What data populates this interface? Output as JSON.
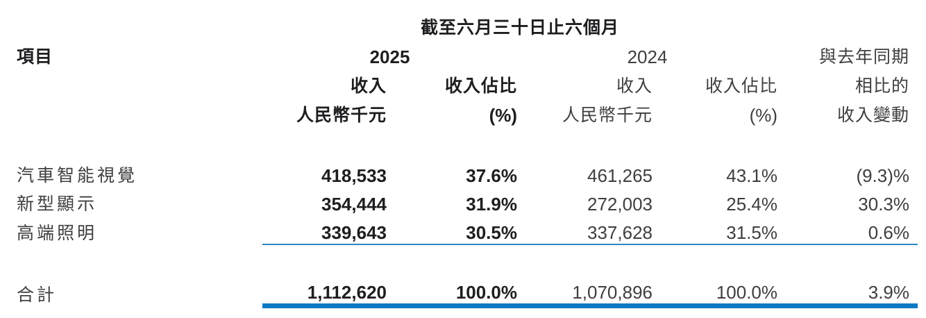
{
  "table": {
    "period_title": "截至六月三十日止六個月",
    "item_header": "項目",
    "year_2025": "2025",
    "year_2024": "2024",
    "columns_2025": {
      "revenue": "收入",
      "revenue_unit": "人民幣千元",
      "share": "收入佔比",
      "share_unit": "(%)"
    },
    "columns_2024": {
      "revenue": "收入",
      "revenue_unit": "人民幣千元",
      "share": "收入佔比",
      "share_unit": "(%)"
    },
    "change_header_lines": [
      "與去年同期",
      "相比的",
      "收入變動"
    ],
    "rows": [
      {
        "label": "汽車智能視覺",
        "rev_2025": "418,533",
        "share_2025": "37.6%",
        "rev_2024": "461,265",
        "share_2024": "43.1%",
        "change": "(9.3)%"
      },
      {
        "label": "新型顯示",
        "rev_2025": "354,444",
        "share_2025": "31.9%",
        "rev_2024": "272,003",
        "share_2024": "25.4%",
        "change": "30.3%"
      },
      {
        "label": "高端照明",
        "rev_2025": "339,643",
        "share_2025": "30.5%",
        "rev_2024": "337,628",
        "share_2024": "31.5%",
        "change": "0.6%"
      }
    ],
    "total": {
      "label": "合計",
      "rev_2025": "1,112,620",
      "share_2025": "100.0%",
      "rev_2024": "1,070,896",
      "share_2024": "100.0%",
      "change": "3.9%"
    }
  },
  "colors": {
    "rule_blue_thick": "#0b79c3",
    "rule_blue_thin": "#2e86c6",
    "text_bold": "#1e1e21",
    "text_regular": "#3e3e40",
    "background": "#ffffff"
  }
}
